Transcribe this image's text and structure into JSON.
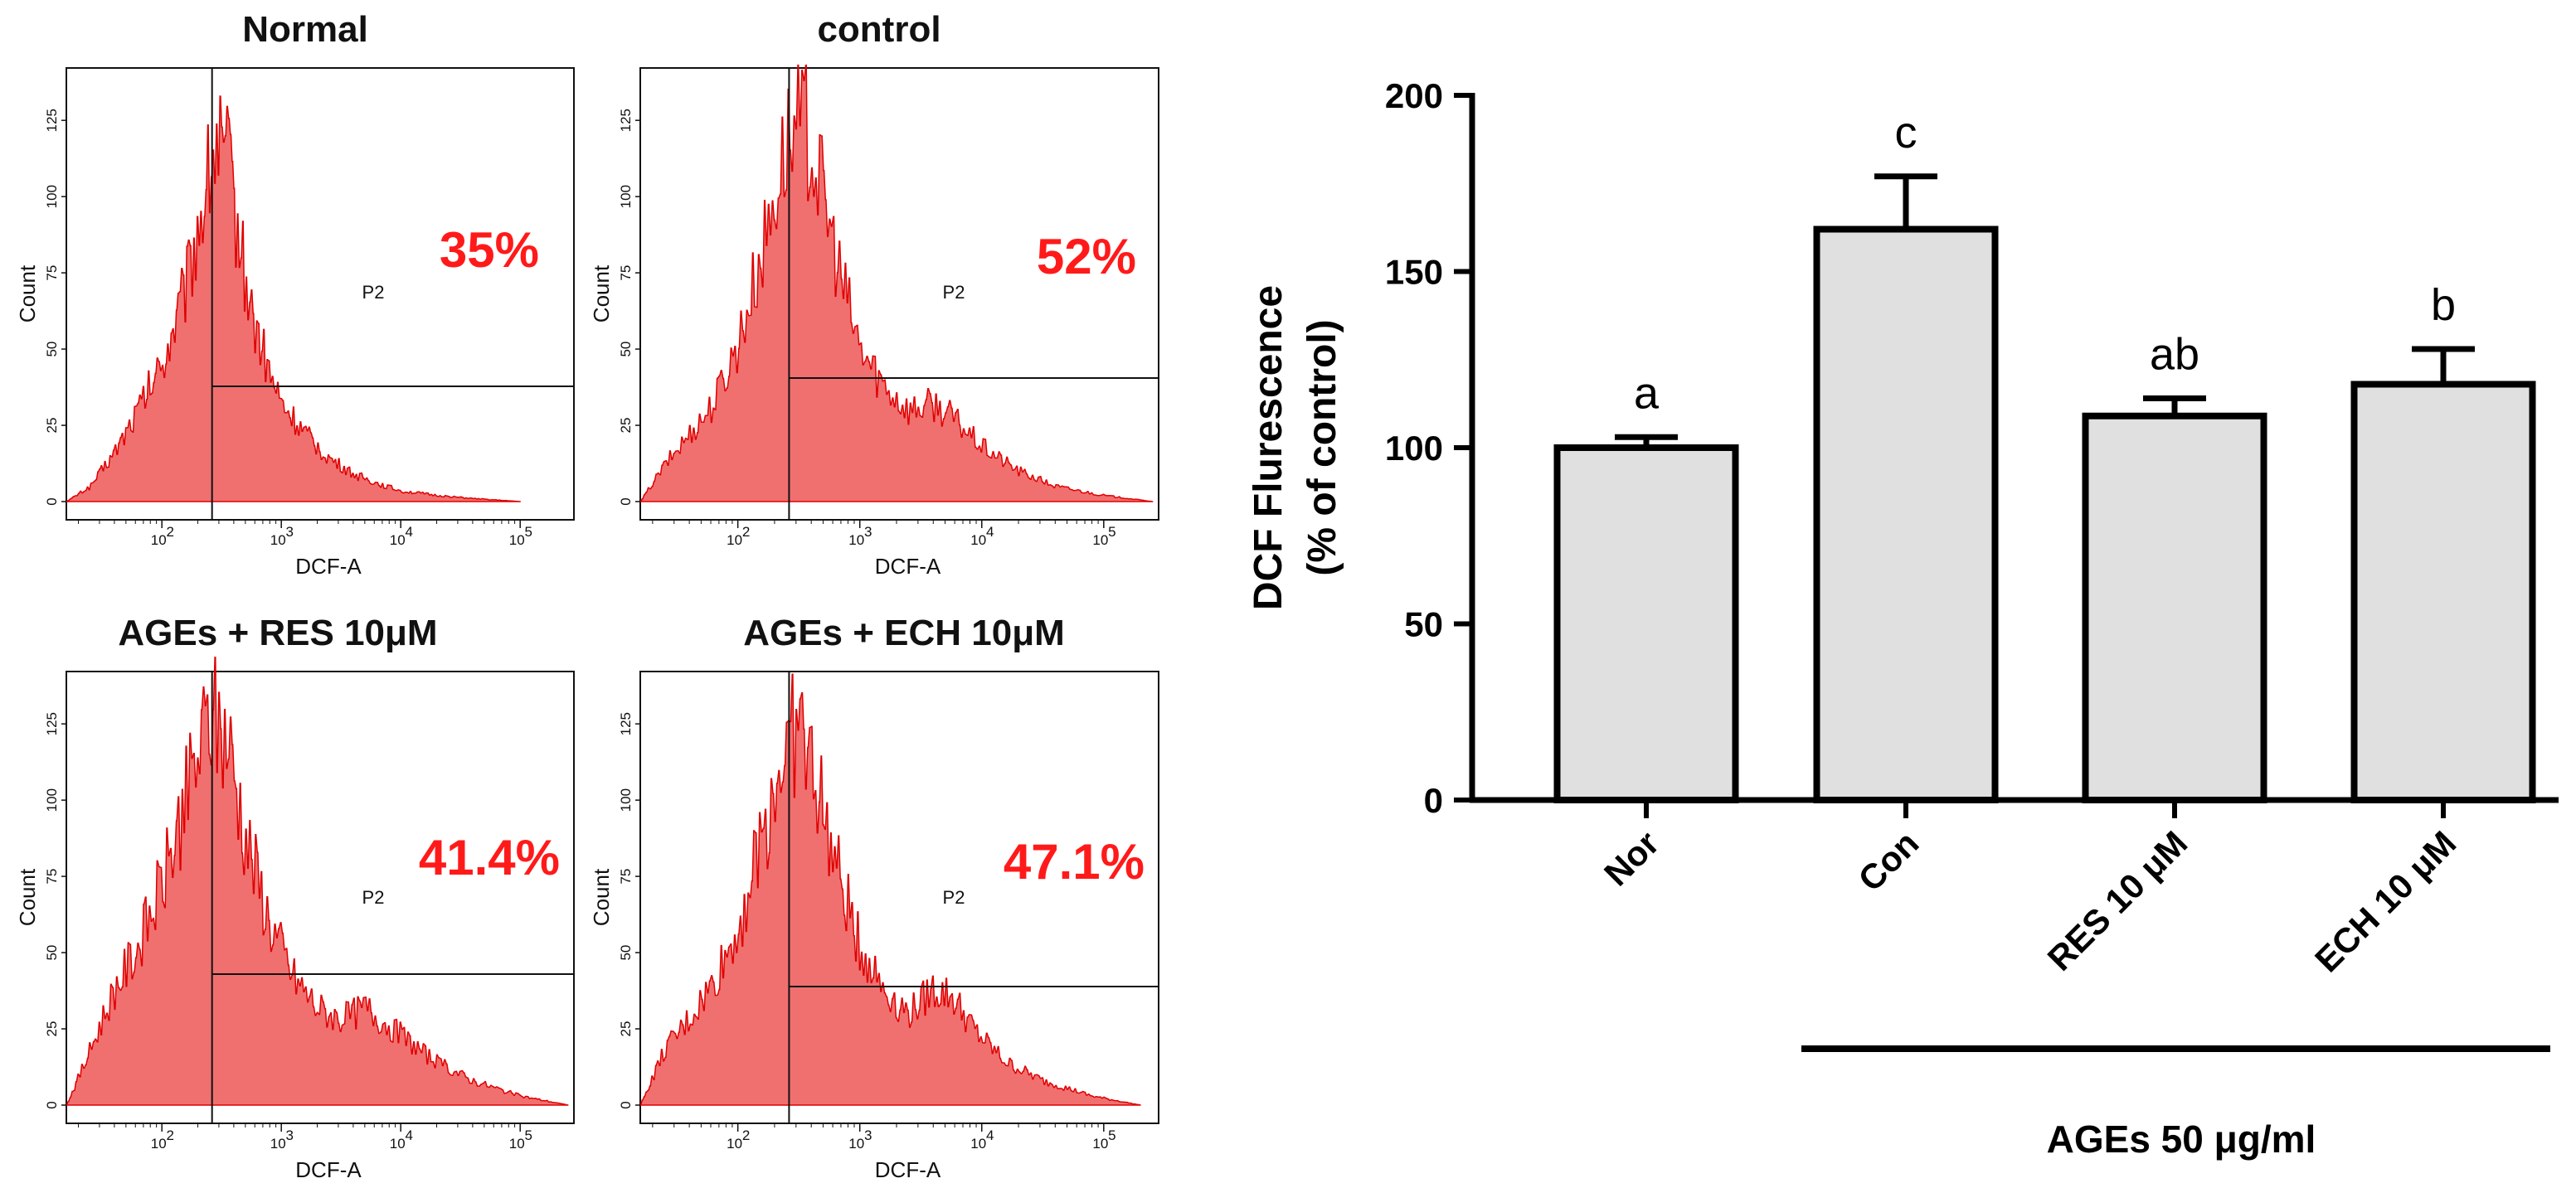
{
  "colors": {
    "histogram_fill": "#f07070",
    "histogram_stroke": "#e00000",
    "percent_text": "#ff1a1a",
    "bar_fill": "#e0e0e0",
    "bar_stroke": "#000000"
  },
  "histograms": [
    {
      "title": "Normal",
      "percent": "35%",
      "gate_label": "P2",
      "x_label": "DCF-A",
      "y_label": "Count",
      "y_ticks": [
        "0",
        "25",
        "50",
        "75",
        "100",
        "125"
      ],
      "x_ticks": [
        "10",
        "10",
        "10",
        "10"
      ],
      "x_tick_exps": [
        "2",
        "3",
        "4",
        "5"
      ],
      "profile": [
        [
          1.2,
          0
        ],
        [
          1.4,
          5
        ],
        [
          1.6,
          16
        ],
        [
          1.8,
          30
        ],
        [
          2.0,
          45
        ],
        [
          2.2,
          70
        ],
        [
          2.35,
          100
        ],
        [
          2.45,
          118
        ],
        [
          2.55,
          112
        ],
        [
          2.65,
          85
        ],
        [
          2.75,
          62
        ],
        [
          2.9,
          42
        ],
        [
          3.0,
          32
        ],
        [
          3.2,
          22
        ],
        [
          3.4,
          14
        ],
        [
          3.6,
          9
        ],
        [
          3.8,
          6
        ],
        [
          4.0,
          3.5
        ],
        [
          4.3,
          2
        ],
        [
          4.6,
          1
        ],
        [
          5.0,
          0
        ]
      ]
    },
    {
      "title": "control",
      "percent": "52%",
      "gate_label": "P2",
      "x_label": "DCF-A",
      "y_label": "Count",
      "y_ticks": [
        "0",
        "25",
        "50",
        "75",
        "100",
        "125"
      ],
      "x_ticks": [
        "10",
        "10",
        "10",
        "10"
      ],
      "x_tick_exps": [
        "2",
        "3",
        "4",
        "5"
      ],
      "profile": [
        [
          1.2,
          0
        ],
        [
          1.4,
          12
        ],
        [
          1.6,
          22
        ],
        [
          1.8,
          32
        ],
        [
          2.0,
          52
        ],
        [
          2.2,
          82
        ],
        [
          2.4,
          118
        ],
        [
          2.55,
          124
        ],
        [
          2.7,
          100
        ],
        [
          2.85,
          72
        ],
        [
          3.0,
          50
        ],
        [
          3.2,
          38
        ],
        [
          3.4,
          30
        ],
        [
          3.6,
          32
        ],
        [
          3.75,
          28
        ],
        [
          4.0,
          18
        ],
        [
          4.3,
          10
        ],
        [
          4.6,
          5
        ],
        [
          5.0,
          2
        ],
        [
          5.4,
          0
        ]
      ]
    },
    {
      "title": "AGEs + RES 10μM",
      "percent": "41.4%",
      "gate_label": "P2",
      "x_label": "DCF-A",
      "y_label": "Count",
      "y_ticks": [
        "0",
        "25",
        "50",
        "75",
        "100",
        "125"
      ],
      "x_ticks": [
        "10",
        "10",
        "10",
        "10"
      ],
      "x_tick_exps": [
        "2",
        "3",
        "4",
        "5"
      ],
      "profile": [
        [
          1.2,
          0
        ],
        [
          1.4,
          18
        ],
        [
          1.6,
          38
        ],
        [
          1.8,
          52
        ],
        [
          2.0,
          72
        ],
        [
          2.2,
          100
        ],
        [
          2.4,
          128
        ],
        [
          2.55,
          120
        ],
        [
          2.7,
          88
        ],
        [
          2.9,
          60
        ],
        [
          3.1,
          42
        ],
        [
          3.3,
          32
        ],
        [
          3.5,
          28
        ],
        [
          3.7,
          32
        ],
        [
          3.9,
          26
        ],
        [
          4.1,
          20
        ],
        [
          4.3,
          14
        ],
        [
          4.6,
          8
        ],
        [
          5.0,
          3
        ],
        [
          5.4,
          0
        ]
      ]
    },
    {
      "title": "AGEs + ECH 10μM",
      "percent": "47.1%",
      "gate_label": "P2",
      "x_label": "DCF-A",
      "y_label": "Count",
      "y_ticks": [
        "0",
        "25",
        "50",
        "75",
        "100",
        "125"
      ],
      "x_ticks": [
        "10",
        "10",
        "10",
        "10"
      ],
      "x_tick_exps": [
        "2",
        "3",
        "4",
        "5"
      ],
      "profile": [
        [
          1.2,
          0
        ],
        [
          1.4,
          18
        ],
        [
          1.6,
          28
        ],
        [
          1.8,
          40
        ],
        [
          2.0,
          58
        ],
        [
          2.2,
          88
        ],
        [
          2.35,
          112
        ],
        [
          2.5,
          125
        ],
        [
          2.65,
          105
        ],
        [
          2.8,
          78
        ],
        [
          3.0,
          52
        ],
        [
          3.2,
          38
        ],
        [
          3.4,
          30
        ],
        [
          3.6,
          38
        ],
        [
          3.75,
          36
        ],
        [
          3.95,
          24
        ],
        [
          4.2,
          14
        ],
        [
          4.5,
          8
        ],
        [
          4.9,
          3
        ],
        [
          5.3,
          0
        ]
      ]
    }
  ],
  "chart_data": {
    "type": "bar",
    "title": "",
    "categories": [
      "Nor",
      "Con",
      "RES 10 μM",
      "ECH 10 μM"
    ],
    "values": [
      100,
      162,
      109,
      118
    ],
    "errors": [
      3,
      15,
      5,
      10
    ],
    "significance": [
      "a",
      "c",
      "ab",
      "b"
    ],
    "ylabel_line1": "DCF Flurescence",
    "ylabel_line2": "(% of control)",
    "xlabel": "",
    "ylim": [
      0,
      200
    ],
    "y_ticks": [
      0,
      50,
      100,
      150,
      200
    ],
    "y_tick_labels": [
      "0",
      "50",
      "100",
      "150",
      "200"
    ],
    "treatment_label": "AGEs 50 μg/ml"
  }
}
